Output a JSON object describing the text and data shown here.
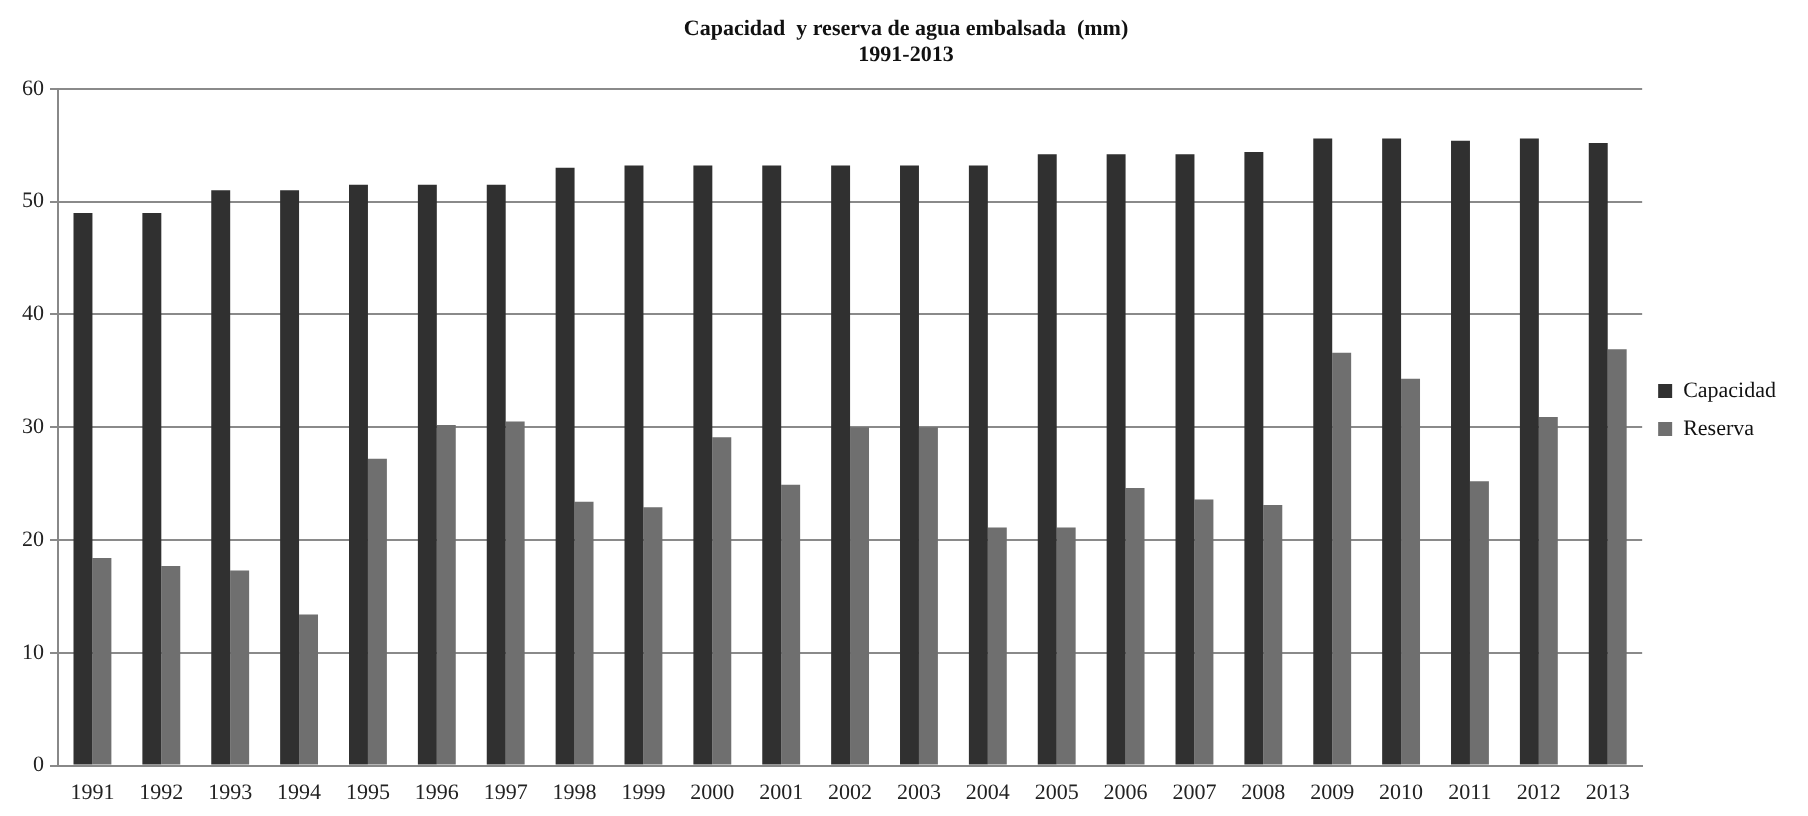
{
  "chart_data": {
    "type": "bar",
    "title": "Capacidad  y reserva de agua embalsada  (mm)",
    "subtitle": "1991-2013",
    "categories": [
      "1991",
      "1992",
      "1993",
      "1994",
      "1995",
      "1996",
      "1997",
      "1998",
      "1999",
      "2000",
      "2001",
      "2002",
      "2003",
      "2004",
      "2005",
      "2006",
      "2007",
      "2008",
      "2009",
      "2010",
      "2011",
      "2012",
      "2013"
    ],
    "series": [
      {
        "name": "Capacidad",
        "color": "#303030",
        "values": [
          49,
          49,
          51,
          51,
          51.5,
          51.5,
          51.5,
          53,
          53.2,
          53.2,
          53.2,
          53.2,
          53.2,
          53.2,
          54.2,
          54.2,
          54.2,
          54.4,
          55.6,
          55.6,
          55.4,
          55.6,
          55.2
        ]
      },
      {
        "name": "Reserva",
        "color": "#6f6f6f",
        "values": [
          18.4,
          17.7,
          17.3,
          13.4,
          27.2,
          30.2,
          30.5,
          23.4,
          22.9,
          29.1,
          24.9,
          30,
          30,
          21.1,
          21.1,
          24.6,
          23.6,
          23.1,
          36.6,
          34.3,
          25.2,
          30.9,
          36.9
        ]
      }
    ],
    "ylim": [
      0,
      60
    ],
    "yticks": [
      0,
      10,
      20,
      30,
      40,
      50,
      60
    ],
    "grid": "y",
    "legend": "right"
  }
}
